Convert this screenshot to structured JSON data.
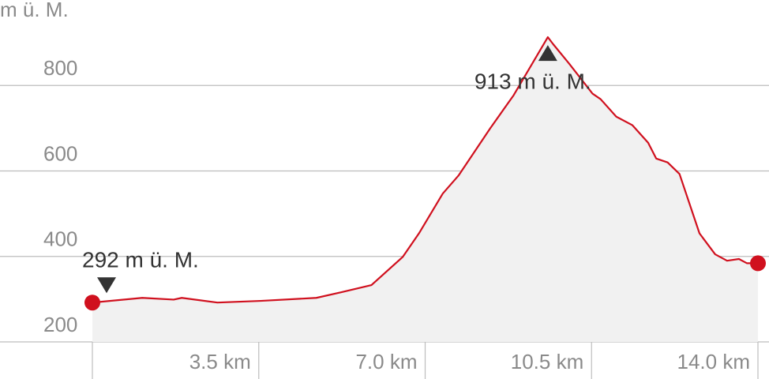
{
  "chart_data": {
    "type": "area",
    "y_label": "m ü. M.",
    "x": [
      0,
      1.05,
      1.71,
      1.88,
      2.63,
      3.54,
      4.71,
      5.23,
      5.87,
      6.53,
      6.87,
      7.37,
      7.7,
      8.37,
      8.86,
      9.58,
      9.69,
      10.03,
      10.52,
      10.69,
      11.02,
      11.36,
      11.69,
      11.86,
      12.1,
      12.35,
      12.77,
      13.1,
      13.35,
      13.6,
      13.77,
      14.0
    ],
    "series": [
      {
        "color": "#d0101e",
        "fill": "#f1f1f1",
        "values": [
          292,
          303,
          299,
          303,
          292,
          296,
          303,
          316,
          333,
          399,
          454,
          547,
          589,
          700,
          777,
          913,
          897,
          851,
          781,
          768,
          727,
          707,
          666,
          629,
          620,
          593,
          454,
          405,
          390,
          394,
          384,
          384
        ]
      }
    ],
    "xlim": [
      0,
      14.0
    ],
    "ylim": [
      200,
      1000
    ],
    "xticks": [
      {
        "value": 3.5,
        "label": "3.5 km"
      },
      {
        "value": 7.0,
        "label": "7.0 km"
      },
      {
        "value": 10.5,
        "label": "10.5 km"
      },
      {
        "value": 14.0,
        "label": "14.0 km"
      }
    ],
    "yticks": [
      200,
      400,
      600,
      800
    ],
    "grid": true,
    "annotations": [
      {
        "text": "292 m ü. M.",
        "x": 0,
        "y": 292,
        "marker": "down"
      },
      {
        "text": "913 m ü. M.",
        "x": 9.58,
        "y": 913,
        "marker": "up"
      }
    ]
  }
}
